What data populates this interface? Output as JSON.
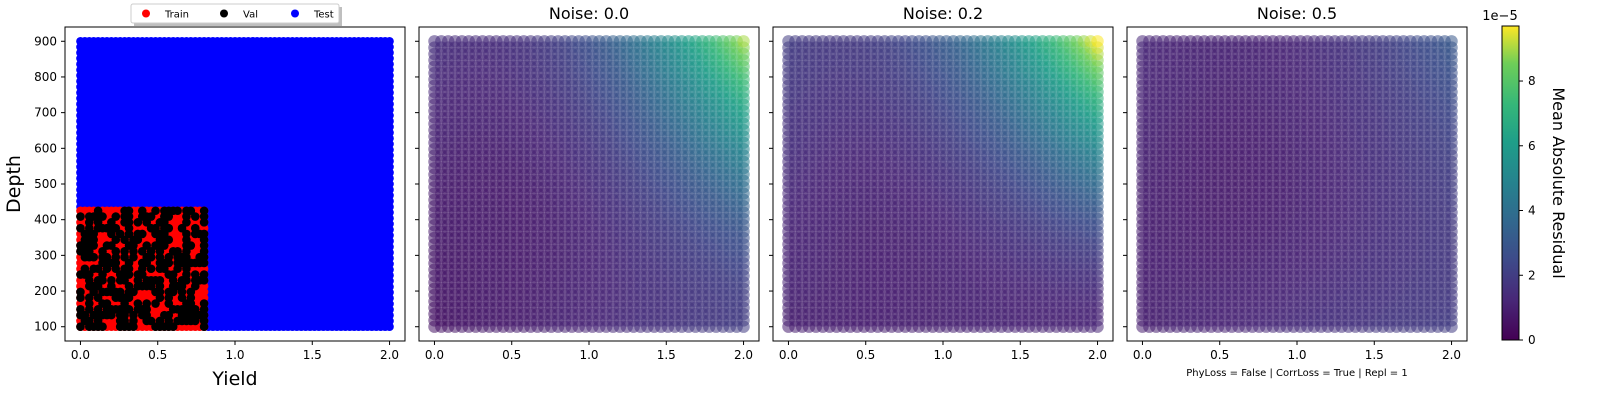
{
  "chart_data": [
    {
      "type": "scatter",
      "title": "",
      "xlabel": "Yield",
      "ylabel": "Depth",
      "xlim": [
        -0.1,
        2.1
      ],
      "ylim": [
        60,
        940
      ],
      "xticks": [
        "0.0",
        "0.5",
        "1.0",
        "1.5",
        "2.0"
      ],
      "yticks": [
        "100",
        "200",
        "300",
        "400",
        "500",
        "600",
        "700",
        "800",
        "900"
      ],
      "legend": {
        "placement": "top-center",
        "entries": [
          {
            "label": "Train",
            "color": "#ff0000"
          },
          {
            "label": "Val",
            "color": "#000000"
          },
          {
            "label": "Test",
            "color": "#0000ff"
          }
        ]
      },
      "series": [
        {
          "name": "Test",
          "color": "#0000ff",
          "x_range": [
            0,
            2.0
          ],
          "y_range": [
            100,
            900
          ],
          "region": "all points with Yield > 0.8 or Depth > 425"
        },
        {
          "name": "Train",
          "color": "#ff0000",
          "x_range": [
            0,
            0.8
          ],
          "y_range": [
            100,
            425
          ]
        },
        {
          "name": "Val",
          "color": "#000000",
          "x_range": [
            0,
            0.8
          ],
          "y_range": [
            100,
            425
          ]
        }
      ]
    },
    {
      "type": "heatmap",
      "title": "Noise: 0.0",
      "xlim": [
        -0.1,
        2.1
      ],
      "ylim": [
        60,
        940
      ],
      "xticks": [
        "0.0",
        "0.5",
        "1.0",
        "1.5",
        "2.0"
      ],
      "x_range": [
        0,
        2.0
      ],
      "y_range": [
        100,
        900
      ],
      "value_scale": "Mean Absolute Residual (×1e-5)",
      "corner_values": {
        "low_yield_low_depth": 0.6,
        "high_yield_low_depth": 2.0,
        "low_yield_high_depth": 1.5,
        "high_yield_high_depth": 9.0
      }
    },
    {
      "type": "heatmap",
      "title": "Noise: 0.2",
      "xlim": [
        -0.1,
        2.1
      ],
      "ylim": [
        60,
        940
      ],
      "xticks": [
        "0.0",
        "0.5",
        "1.0",
        "1.5",
        "2.0"
      ],
      "x_range": [
        0,
        2.0
      ],
      "y_range": [
        100,
        900
      ],
      "value_scale": "Mean Absolute Residual (×1e-5)",
      "corner_values": {
        "low_yield_low_depth": 1.0,
        "high_yield_low_depth": 1.2,
        "low_yield_high_depth": 2.0,
        "high_yield_high_depth": 9.7
      }
    },
    {
      "type": "heatmap",
      "title": "Noise: 0.5",
      "xlim": [
        -0.1,
        2.1
      ],
      "ylim": [
        60,
        940
      ],
      "xticks": [
        "0.0",
        "0.5",
        "1.0",
        "1.5",
        "2.0"
      ],
      "x_range": [
        0,
        2.0
      ],
      "y_range": [
        100,
        900
      ],
      "value_scale": "Mean Absolute Residual (×1e-5)",
      "corner_values": {
        "low_yield_low_depth": 1.0,
        "high_yield_low_depth": 2.0,
        "low_yield_high_depth": 1.3,
        "high_yield_high_depth": 3.0
      }
    }
  ],
  "colorbar": {
    "label": "Mean Absolute Residual",
    "exponent": "1e−5",
    "range": [
      0,
      9.7
    ],
    "ticks": [
      "0",
      "2",
      "4",
      "6",
      "8"
    ],
    "colormap": "viridis"
  },
  "footnote": "PhyLoss = False | CorrLoss = True | Repl = 1"
}
